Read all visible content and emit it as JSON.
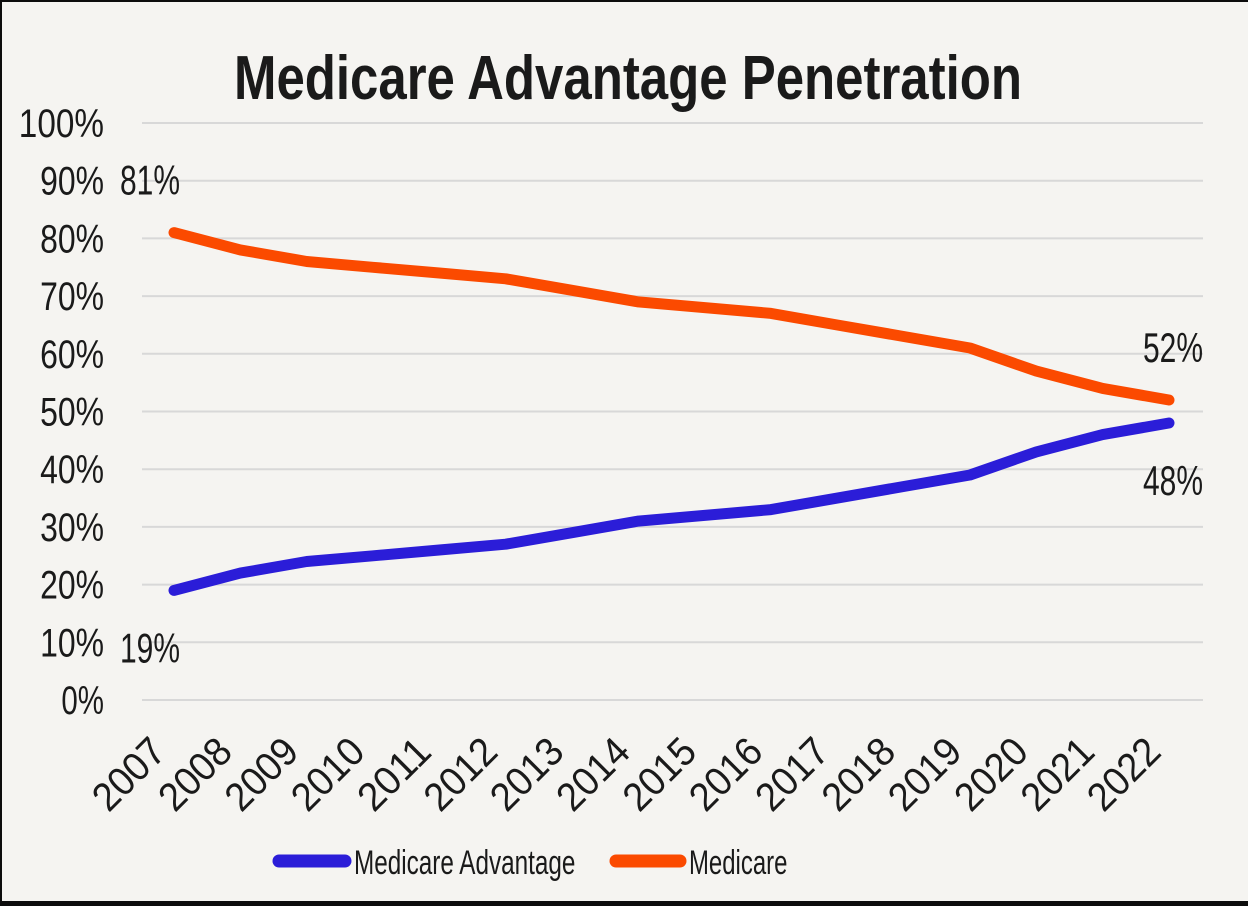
{
  "chart_data": {
    "type": "line",
    "title": "Medicare Advantage Penetration",
    "categories": [
      "2007",
      "2008",
      "2009",
      "2010",
      "2011",
      "2012",
      "2013",
      "2014",
      "2015",
      "2016",
      "2017",
      "2018",
      "2019",
      "2020",
      "2021",
      "2022"
    ],
    "series": [
      {
        "name": "Medicare Advantage",
        "color": "#2B1DD8",
        "values": [
          19,
          22,
          24,
          25,
          26,
          27,
          29,
          31,
          32,
          33,
          35,
          37,
          39,
          43,
          46,
          48
        ],
        "label_side": "below",
        "end_labels": {
          "start": "19%",
          "end": "48%"
        }
      },
      {
        "name": "Medicare",
        "color": "#FB4A00",
        "values": [
          81,
          78,
          76,
          75,
          74,
          73,
          71,
          69,
          68,
          67,
          65,
          63,
          61,
          57,
          54,
          52
        ],
        "label_side": "above",
        "end_labels": {
          "start": "81%",
          "end": "52%"
        }
      }
    ],
    "xlabel": "",
    "ylabel": "",
    "ylim": [
      0,
      100
    ],
    "ytick_step": 10,
    "ytick_labels": [
      "0%",
      "10%",
      "20%",
      "30%",
      "40%",
      "50%",
      "60%",
      "70%",
      "80%",
      "90%",
      "100%"
    ],
    "grid": "horizontal",
    "legend_position": "bottom"
  },
  "style": {
    "background": "#f5f4f1",
    "border_color": "#0c0c0c",
    "grid_color": "#d8d8d8",
    "text_color": "#1a1a1a",
    "title_color": "#0b0b0b"
  }
}
